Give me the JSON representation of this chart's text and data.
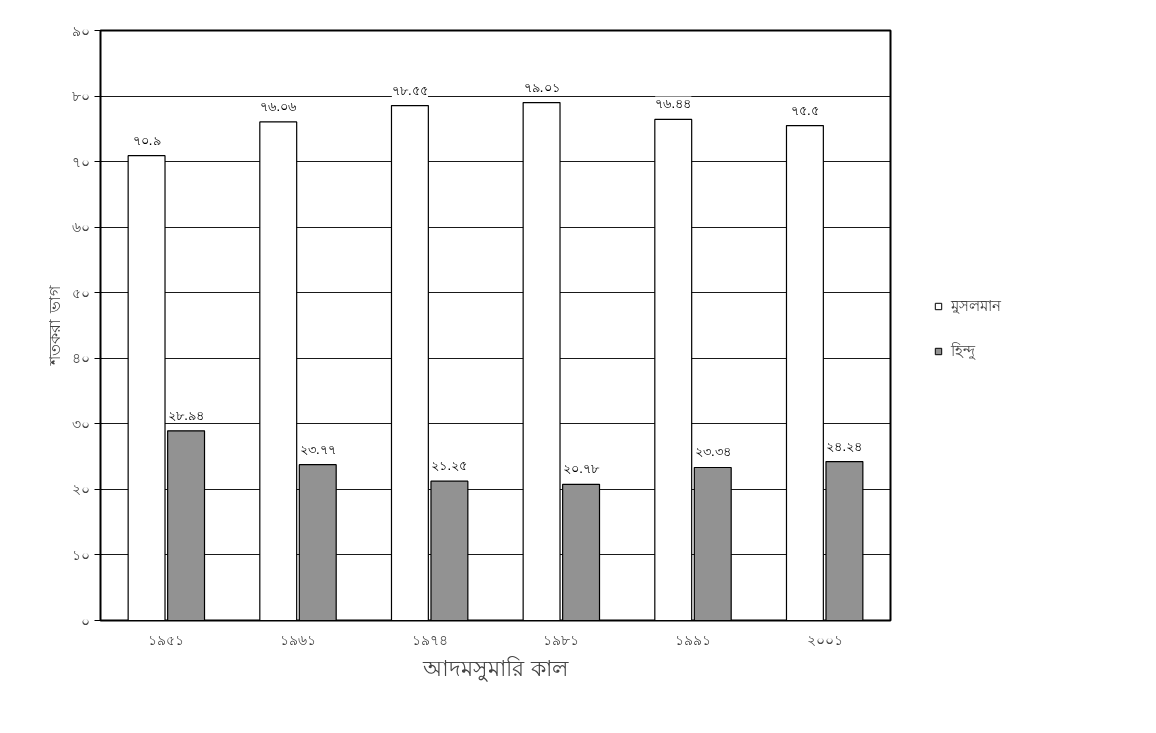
{
  "chart_data": {
    "type": "bar",
    "xlabel": "আদমসুমারি কাল",
    "ylabel": "শতকরা ভাগ",
    "categories": [
      "১৯৫১",
      "১৯৬১",
      "১৯৭৪",
      "১৯৮১",
      "১৯৯১",
      "২০০১"
    ],
    "series": [
      {
        "name": "মুসলমান",
        "color": "#ffffff",
        "values": [
          70.9,
          76.06,
          78.55,
          79.01,
          76.44,
          75.5
        ],
        "value_labels": [
          "৭০.৯",
          "৭৬.০৬",
          "৭৮.৫৫",
          "৭৯.০১",
          "৭৬.৪৪",
          "৭৫.৫"
        ]
      },
      {
        "name": "হিন্দু",
        "color": "#929292",
        "values": [
          28.94,
          23.77,
          21.25,
          20.78,
          23.34,
          24.24
        ],
        "value_labels": [
          "২৮.৯৪",
          "২৩.৭৭",
          "২১.২৫",
          "২০.৭৮",
          "২৩.৩৪",
          "২৪.২৪"
        ]
      }
    ],
    "ylim": [
      0,
      90
    ],
    "yticks": [
      {
        "value": 0,
        "label": "০"
      },
      {
        "value": 10,
        "label": "১০"
      },
      {
        "value": 20,
        "label": "২০"
      },
      {
        "value": 30,
        "label": "৩০"
      },
      {
        "value": 40,
        "label": "৪০"
      },
      {
        "value": 50,
        "label": "৫০"
      },
      {
        "value": 60,
        "label": "৬০"
      },
      {
        "value": 70,
        "label": "৭০"
      },
      {
        "value": 80,
        "label": "৮০"
      },
      {
        "value": 90,
        "label": "৯০"
      }
    ],
    "grid": "y",
    "legend": "right"
  }
}
